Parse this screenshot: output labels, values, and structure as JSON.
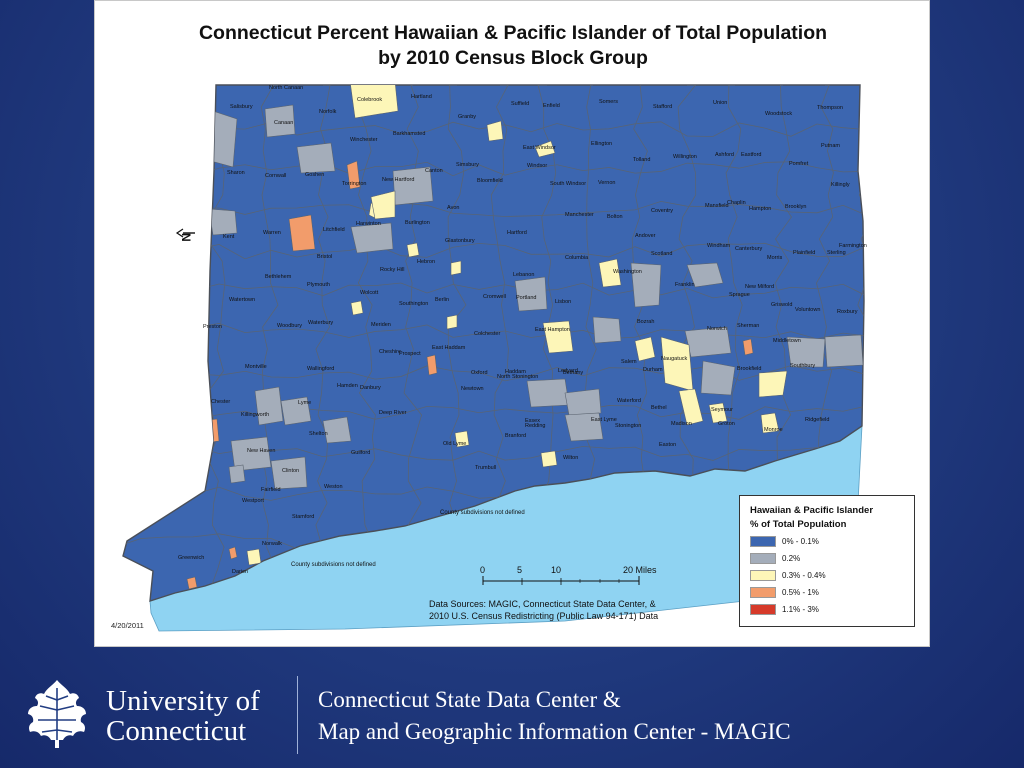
{
  "map": {
    "title_line1": "Connecticut Percent Hawaiian & Pacific Islander of Total Population",
    "title_line2": "by 2010 Census Block Group",
    "date": "4/20/2011",
    "north_arrow_label": "N",
    "notes": [
      "County subdivisions not defined",
      "County subdivisions not defined"
    ],
    "town_labels": [
      "North Canaan",
      "Colebrook",
      "Hartland",
      "Suffield",
      "Enfield",
      "Somers",
      "Stafford",
      "Union",
      "Thompson",
      "Salisbury",
      "Norfolk",
      "Canaan",
      "Granby",
      "Woodstock",
      "Winchester",
      "Barkhamsted",
      "East Windsor",
      "Ellington",
      "Putnam",
      "Sharon",
      "Cornwall",
      "Goshen",
      "Torrington",
      "New Hartford",
      "Canton",
      "Simsbury",
      "Windsor",
      "Tolland",
      "Willington",
      "Ashford",
      "Eastford",
      "Pomfret",
      "Bloomfield",
      "South Windsor",
      "Vernon",
      "Killingly",
      "Avon",
      "Manchester",
      "Coventry",
      "Mansfield",
      "Chaplin",
      "Hampton",
      "Brooklyn",
      "Kent",
      "Warren",
      "Litchfield",
      "Harwinton",
      "Burlington",
      "Hartford",
      "Bolton",
      "Andover",
      "Windham",
      "Canterbury",
      "Plainfield",
      "Sterling",
      "Farmington",
      "Glastonbury",
      "Columbia",
      "Scotland",
      "Morris",
      "Bristol",
      "Hebron",
      "Washington",
      "Bethlehem",
      "Plymouth",
      "Rocky Hill",
      "Lebanon",
      "Franklin",
      "Sprague",
      "New Milford",
      "Watertown",
      "Wolcott",
      "Southington",
      "Berlin",
      "Cromwell",
      "Portland",
      "Lisbon",
      "Griswold",
      "Voluntown",
      "Roxbury",
      "Woodbury",
      "Waterbury",
      "Meriden",
      "Colchester",
      "Bozrah",
      "Norwich",
      "Sherman",
      "Preston",
      "Middletown",
      "East Hampton",
      "Salem",
      "Naugatuck",
      "Prospect",
      "Cheshire",
      "East Haddam",
      "North Stonington",
      "Brookfield",
      "Southbury",
      "Montville",
      "Wallingford",
      "Durham",
      "Haddam",
      "Ledyard",
      "Oxford",
      "Bethany",
      "Hamden",
      "Danbury",
      "Newtown",
      "Chester",
      "Lyme",
      "Waterford",
      "Bethel",
      "Seymour",
      "Killingworth",
      "Deep River",
      "Essex",
      "East Lyme",
      "Stonington",
      "Madison",
      "Groton",
      "Ridgefield",
      "Redding",
      "Monroe",
      "Shelton",
      "New Haven",
      "Guilford",
      "Old Lyme",
      "Branford",
      "Easton",
      "Trumbull",
      "Clinton",
      "Weston",
      "Wilton",
      "Fairfield",
      "Westport",
      "Stamford",
      "Norwalk",
      "Greenwich",
      "Darien"
    ],
    "scale_bar": {
      "ticks": [
        "0",
        "5",
        "10",
        "20 Miles"
      ]
    },
    "legend": {
      "title_line1": "Hawaiian & Pacific Islander",
      "title_line2": "% of Total Population",
      "items": [
        {
          "label": "0% - 0.1%",
          "color": "#3c66b0"
        },
        {
          "label": "0.2%",
          "color": "#a4adba"
        },
        {
          "label": "0.3% - 0.4%",
          "color": "#fdf6b8"
        },
        {
          "label": "0.5% - 1%",
          "color": "#f29c6b"
        },
        {
          "label": "1.1% - 3%",
          "color": "#d63a2a"
        }
      ]
    },
    "data_sources_line1": "Data Sources: MAGIC, Connecticut State Data Center, &",
    "data_sources_line2": "2010 U.S. Census Redistricting (Public Law 94-171) Data",
    "colors": {
      "water": "#8fd3f2",
      "land_base": "#3c66b0",
      "boundary": "#5b6470"
    }
  },
  "footer": {
    "university_line1": "University of",
    "university_line2": "Connecticut",
    "center_line1": "Connecticut State Data Center &",
    "center_line2": "Map and Geographic Information Center - MAGIC"
  }
}
